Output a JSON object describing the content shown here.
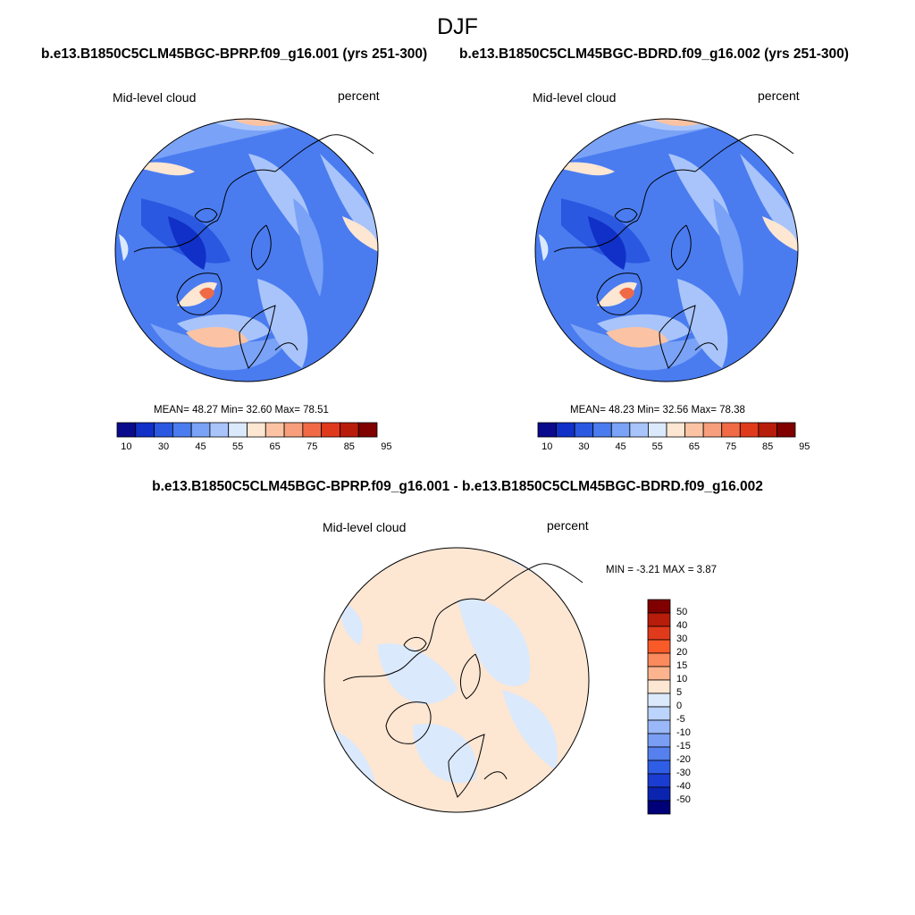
{
  "figure": {
    "season": "DJF",
    "panels": [
      {
        "title": "b.e13.B1850C5CLM45BGC-BPRP.f09_g16.001 (yrs 251-300)",
        "variable": "Mid-level cloud",
        "units": "percent",
        "stats_text": "MEAN=  48.27  Min=  32.60  Max=  78.51",
        "stats": {
          "mean": 48.27,
          "min": 32.6,
          "max": 78.51
        }
      },
      {
        "title": "b.e13.B1850C5CLM45BGC-BDRD.f09_g16.002 (yrs 251-300)",
        "variable": "Mid-level cloud",
        "units": "percent",
        "stats_text": "MEAN=  48.23  Min=  32.56  Max=  78.38",
        "stats": {
          "mean": 48.23,
          "min": 32.56,
          "max": 78.38
        }
      }
    ],
    "difference": {
      "title": "b.e13.B1850C5CLM45BGC-BPRP.f09_g16.001 - b.e13.B1850C5CLM45BGC-BDRD.f09_g16.002",
      "variable": "Mid-level cloud",
      "units": "percent",
      "stats_text": "MIN =  -3.21 MAX =   3.87",
      "stats": {
        "min": -3.21,
        "max": 3.87
      }
    },
    "colorbar_main": {
      "tick_labels": [
        "10",
        "30",
        "45",
        "55",
        "65",
        "75",
        "85",
        "95"
      ],
      "colors": [
        "#0a0a8c",
        "#1030c8",
        "#2a58e0",
        "#4a7cf0",
        "#7aa2f6",
        "#a8c4fa",
        "#dbe9fc",
        "#fde6d2",
        "#fbc3a3",
        "#f79e7c",
        "#f06a46",
        "#e03a1c",
        "#b81c0a",
        "#800000"
      ]
    },
    "colorbar_diff": {
      "labels": [
        "50",
        "40",
        "30",
        "20",
        "15",
        "10",
        "5",
        "0",
        "-5",
        "-10",
        "-15",
        "-20",
        "-30",
        "-40",
        "-50"
      ],
      "colors": [
        "#800000",
        "#b81c0a",
        "#e03a1c",
        "#f85a28",
        "#fb8a5c",
        "#fbb48e",
        "#fde6d2",
        "#dbe9fc",
        "#bcd3fb",
        "#9ab8f8",
        "#7a9ef4",
        "#5580ee",
        "#2f5ee6",
        "#1a3cd0",
        "#0a24b0",
        "#000078"
      ]
    }
  }
}
